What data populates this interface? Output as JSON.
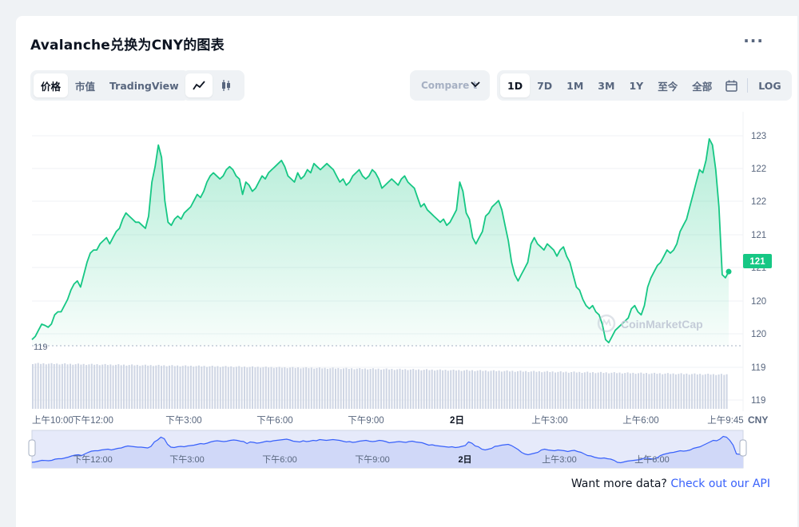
{
  "header": {
    "title": "Avalanche兑换为CNY的图表"
  },
  "tabs_left": [
    {
      "label": "价格",
      "active": true
    },
    {
      "label": "市值",
      "active": false
    },
    {
      "label": "TradingView",
      "active": false
    }
  ],
  "chart_types": [
    {
      "icon": "line-chart-icon",
      "active": true
    },
    {
      "icon": "candlestick-icon",
      "active": false
    }
  ],
  "compare": {
    "label": "Compare t"
  },
  "ranges": [
    {
      "label": "1D",
      "active": true
    },
    {
      "label": "7D",
      "active": false
    },
    {
      "label": "1M",
      "active": false
    },
    {
      "label": "3M",
      "active": false
    },
    {
      "label": "1Y",
      "active": false
    },
    {
      "label": "至今",
      "active": false
    },
    {
      "label": "全部",
      "active": false
    }
  ],
  "log_label": "LOG",
  "watermark": "CoinMarketCap",
  "footer": {
    "prefix": "Want more data? ",
    "link": "Check out our API"
  },
  "colors": {
    "line": "#16c784",
    "navigator_line": "#3861fb",
    "accent": "#3861fb"
  },
  "chart_data": {
    "type": "area",
    "currency": "CNY",
    "y_tick_labels": [
      "123",
      "122",
      "122",
      "121",
      "121",
      "120",
      "120",
      "119",
      "119"
    ],
    "baseline_label": "119",
    "current_price_label": "121",
    "x_tick_labels": [
      "上午10:00",
      "下午12:00",
      "下午3:00",
      "下午6:00",
      "下午9:00",
      "2日",
      "上午3:00",
      "上午6:00",
      "上午9:45"
    ],
    "navigator_tick_labels": [
      "下午12:00",
      "下午3:00",
      "下午6:00",
      "下午9:00",
      "2日",
      "上午3:00",
      "上午6:00"
    ],
    "price_range": [
      119.85,
      123.25
    ],
    "series": [
      {
        "values": [
          119.95,
          120.0,
          120.1,
          120.2,
          120.18,
          120.15,
          120.2,
          120.35,
          120.4,
          120.4,
          120.5,
          120.6,
          120.75,
          120.85,
          120.9,
          120.8,
          121.0,
          121.2,
          121.35,
          121.4,
          121.4,
          121.5,
          121.55,
          121.6,
          121.5,
          121.6,
          121.7,
          121.75,
          121.9,
          122.0,
          121.95,
          121.9,
          121.85,
          121.85,
          121.8,
          121.75,
          121.95,
          122.5,
          122.75,
          123.1,
          122.9,
          122.2,
          121.85,
          121.8,
          121.9,
          121.95,
          121.9,
          122.0,
          122.05,
          122.1,
          122.2,
          122.3,
          122.25,
          122.35,
          122.5,
          122.6,
          122.65,
          122.6,
          122.55,
          122.6,
          122.7,
          122.75,
          122.7,
          122.6,
          122.55,
          122.3,
          122.5,
          122.45,
          122.35,
          122.4,
          122.5,
          122.6,
          122.55,
          122.65,
          122.7,
          122.75,
          122.8,
          122.85,
          122.75,
          122.6,
          122.55,
          122.5,
          122.65,
          122.55,
          122.6,
          122.7,
          122.65,
          122.8,
          122.75,
          122.7,
          122.75,
          122.8,
          122.75,
          122.7,
          122.6,
          122.5,
          122.55,
          122.45,
          122.5,
          122.6,
          122.65,
          122.7,
          122.6,
          122.55,
          122.6,
          122.7,
          122.65,
          122.55,
          122.4,
          122.45,
          122.5,
          122.55,
          122.5,
          122.45,
          122.55,
          122.6,
          122.5,
          122.45,
          122.4,
          122.25,
          122.1,
          122.15,
          122.05,
          122.0,
          121.95,
          121.9,
          121.85,
          121.9,
          121.8,
          121.85,
          121.95,
          122.05,
          122.5,
          122.35,
          122.0,
          121.9,
          121.6,
          121.5,
          121.6,
          121.7,
          121.95,
          122.0,
          122.1,
          122.15,
          122.2,
          122.05,
          121.8,
          121.55,
          121.2,
          121.0,
          120.9,
          121.0,
          121.1,
          121.2,
          121.5,
          121.6,
          121.5,
          121.45,
          121.4,
          121.5,
          121.45,
          121.4,
          121.3,
          121.4,
          121.45,
          121.3,
          121.2,
          121.0,
          120.8,
          120.75,
          120.6,
          120.5,
          120.45,
          120.5,
          120.4,
          120.35,
          120.2,
          119.95,
          119.9,
          120.0,
          120.1,
          120.15,
          120.2,
          120.25,
          120.3,
          120.45,
          120.5,
          120.4,
          120.35,
          120.5,
          120.8,
          120.95,
          121.05,
          121.15,
          121.2,
          121.3,
          121.4,
          121.35,
          121.4,
          121.5,
          121.7,
          121.8,
          121.9,
          122.1,
          122.3,
          122.5,
          122.7,
          122.65,
          122.85,
          123.2,
          123.1,
          122.7,
          122.1,
          121.0,
          120.95,
          121.05
        ]
      }
    ]
  }
}
